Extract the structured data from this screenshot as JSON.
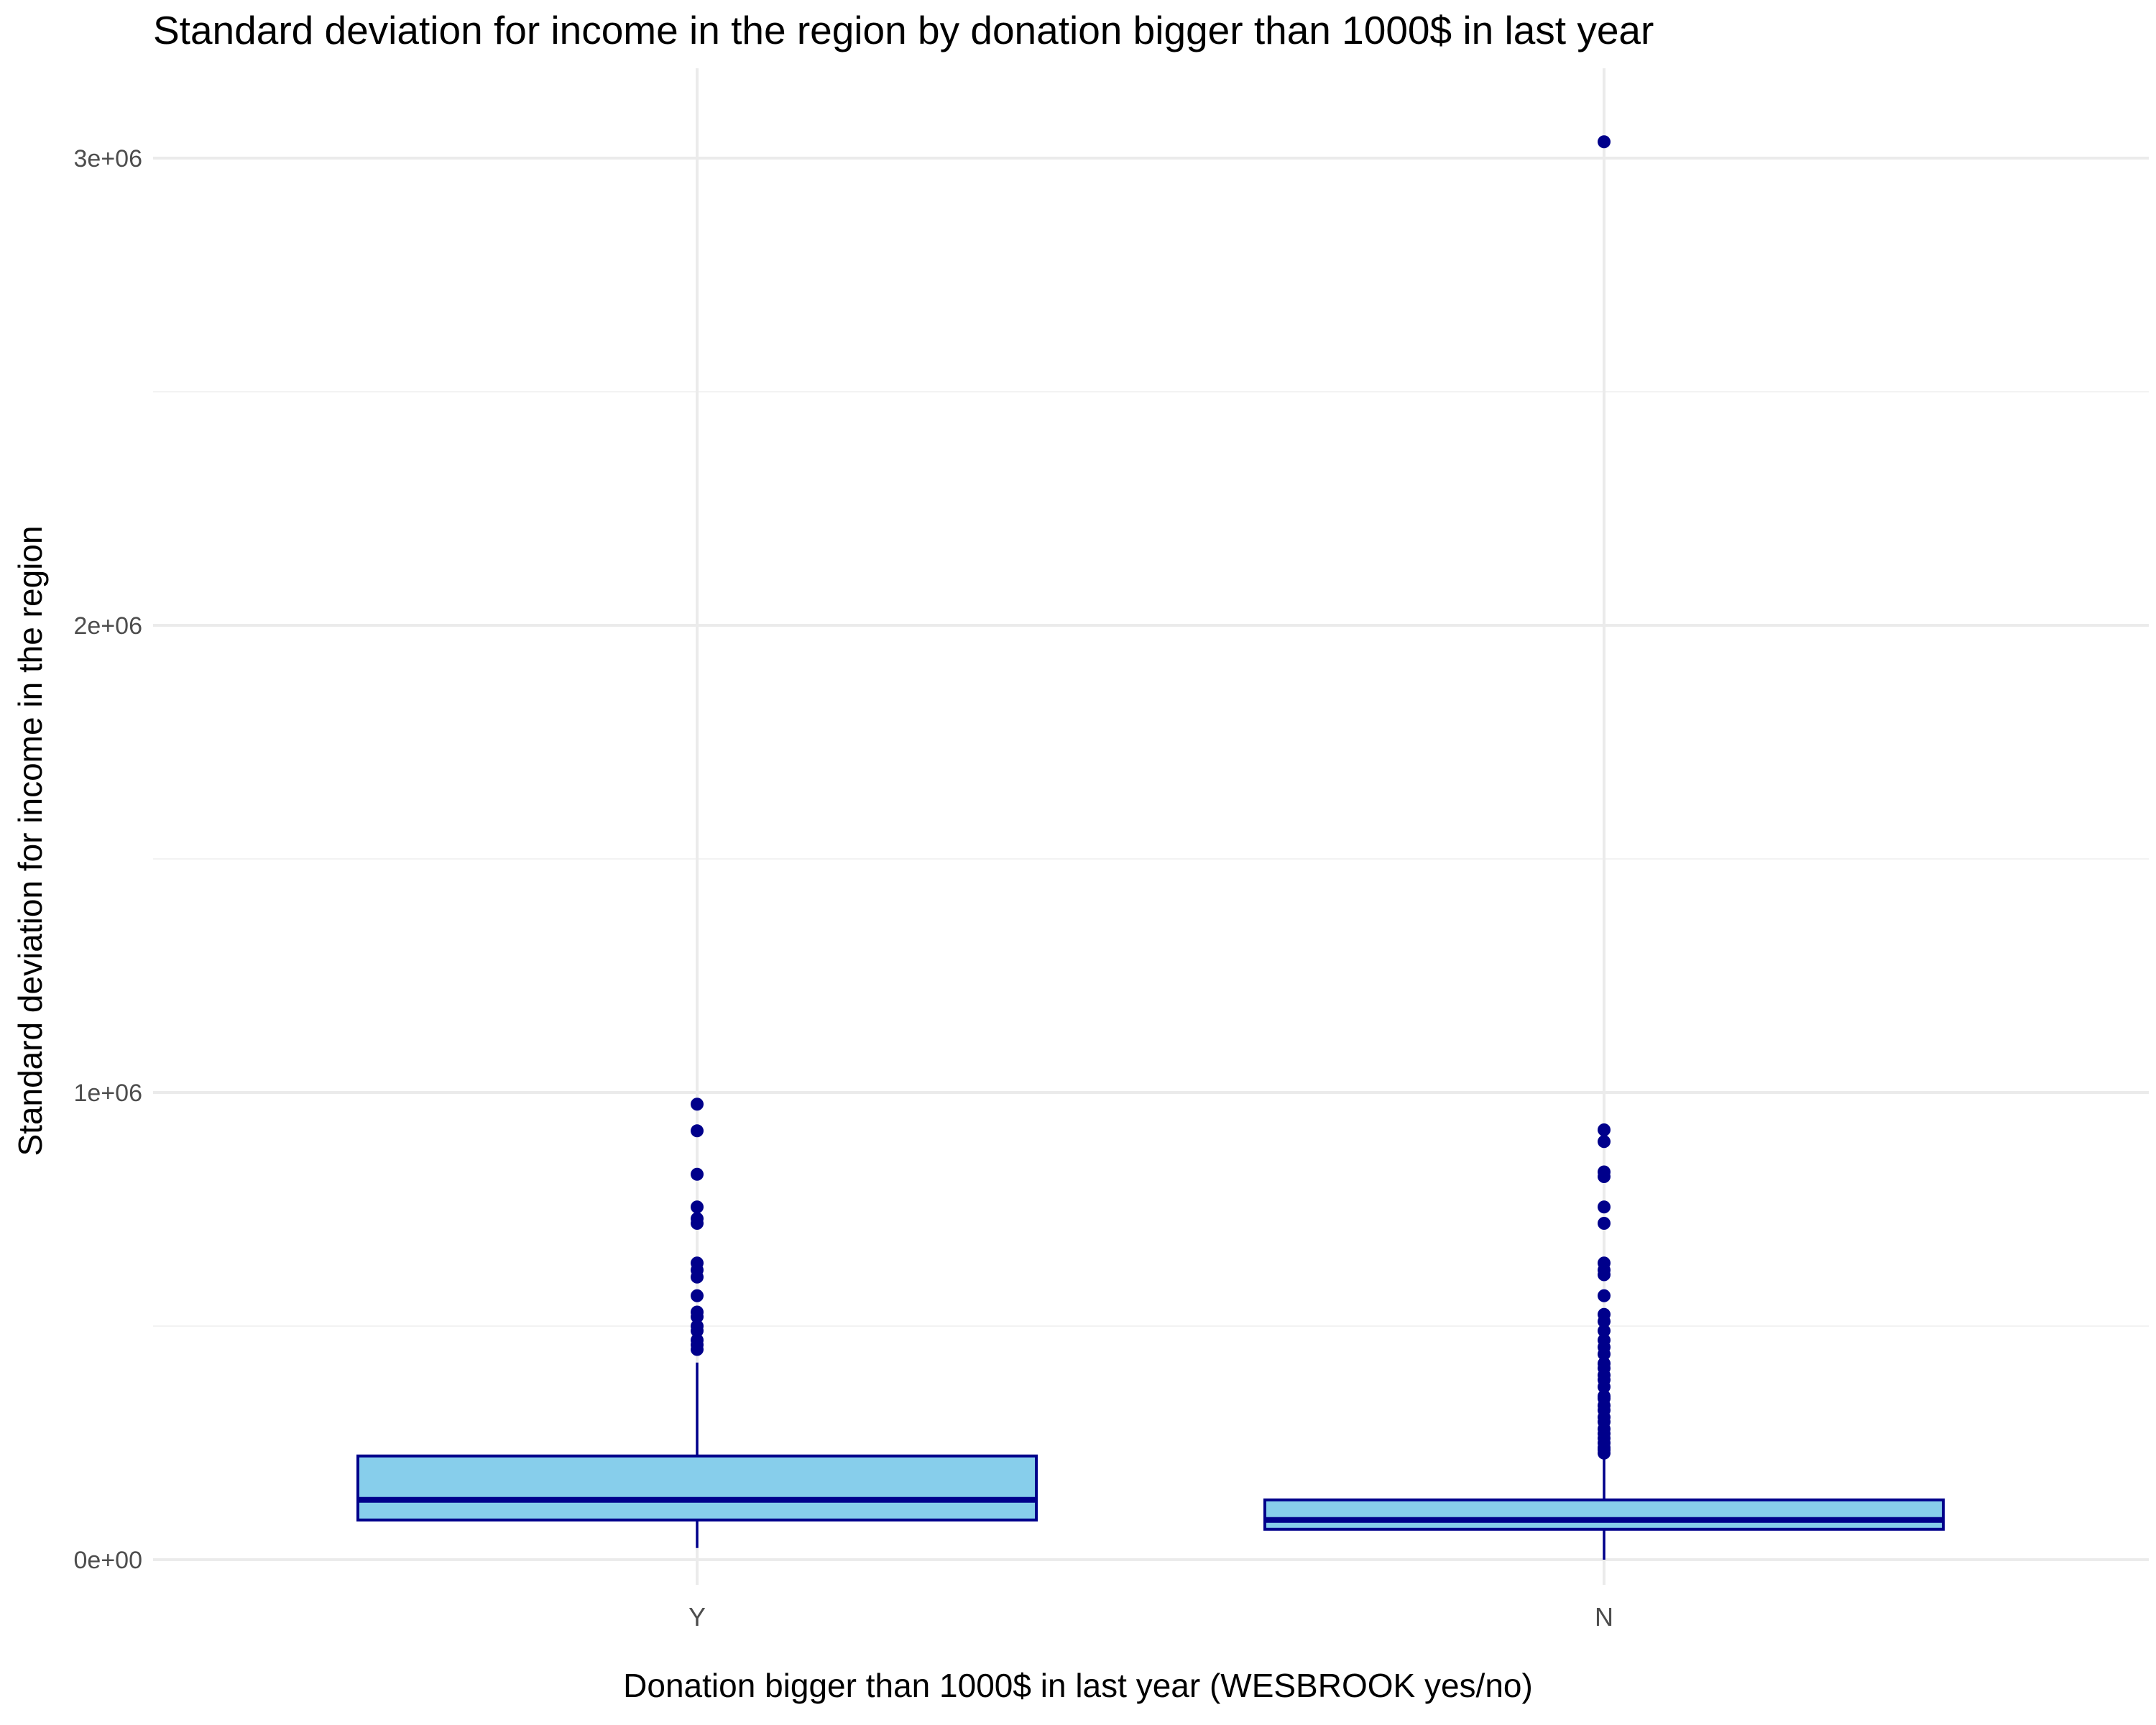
{
  "chart_data": {
    "type": "boxplot",
    "title": "Standard deviation for income in the region by donation bigger than 1000$ in last year",
    "xlabel": "Donation bigger than 1000$ in last year (WESBROOK yes/no)",
    "ylabel": "Standard deviation for income in the region",
    "categories": [
      "Y",
      "N"
    ],
    "ylim": [
      -50000,
      3050000
    ],
    "y_ticks": [
      0,
      1000000,
      2000000,
      3000000
    ],
    "y_tick_labels": [
      "0e+00",
      "1e+06",
      "2e+06",
      "3e+06"
    ],
    "grid": true,
    "legend": "none",
    "boxes": [
      {
        "category": "Y",
        "whisker_low": 25000,
        "q1": 85000,
        "median": 128000,
        "q3": 222000,
        "whisker_high": 422000,
        "outliers": [
          975000,
          918000,
          825000,
          755000,
          730000,
          720000,
          635000,
          620000,
          605000,
          565000,
          530000,
          520000,
          500000,
          490000,
          470000,
          460000,
          450000
        ]
      },
      {
        "category": "N",
        "whisker_low": 0,
        "q1": 65000,
        "median": 85000,
        "q3": 128000,
        "whisker_high": 225000,
        "outliers": [
          3035000,
          920000,
          895000,
          830000,
          820000,
          755000,
          720000,
          635000,
          620000,
          610000,
          565000,
          525000,
          510000,
          490000,
          470000,
          455000,
          440000,
          420000,
          410000,
          395000,
          385000,
          370000,
          350000,
          345000,
          330000,
          320000,
          305000,
          295000,
          280000,
          270000,
          260000,
          250000,
          240000,
          235000,
          228000
        ]
      }
    ],
    "colors": {
      "box_fill": "#87ceeb",
      "box_stroke": "#00008b",
      "outlier": "#00008b",
      "grid_major": "#ebebeb",
      "grid_minor": "#f3f3f3",
      "tick_text": "#4d4d4d"
    }
  }
}
